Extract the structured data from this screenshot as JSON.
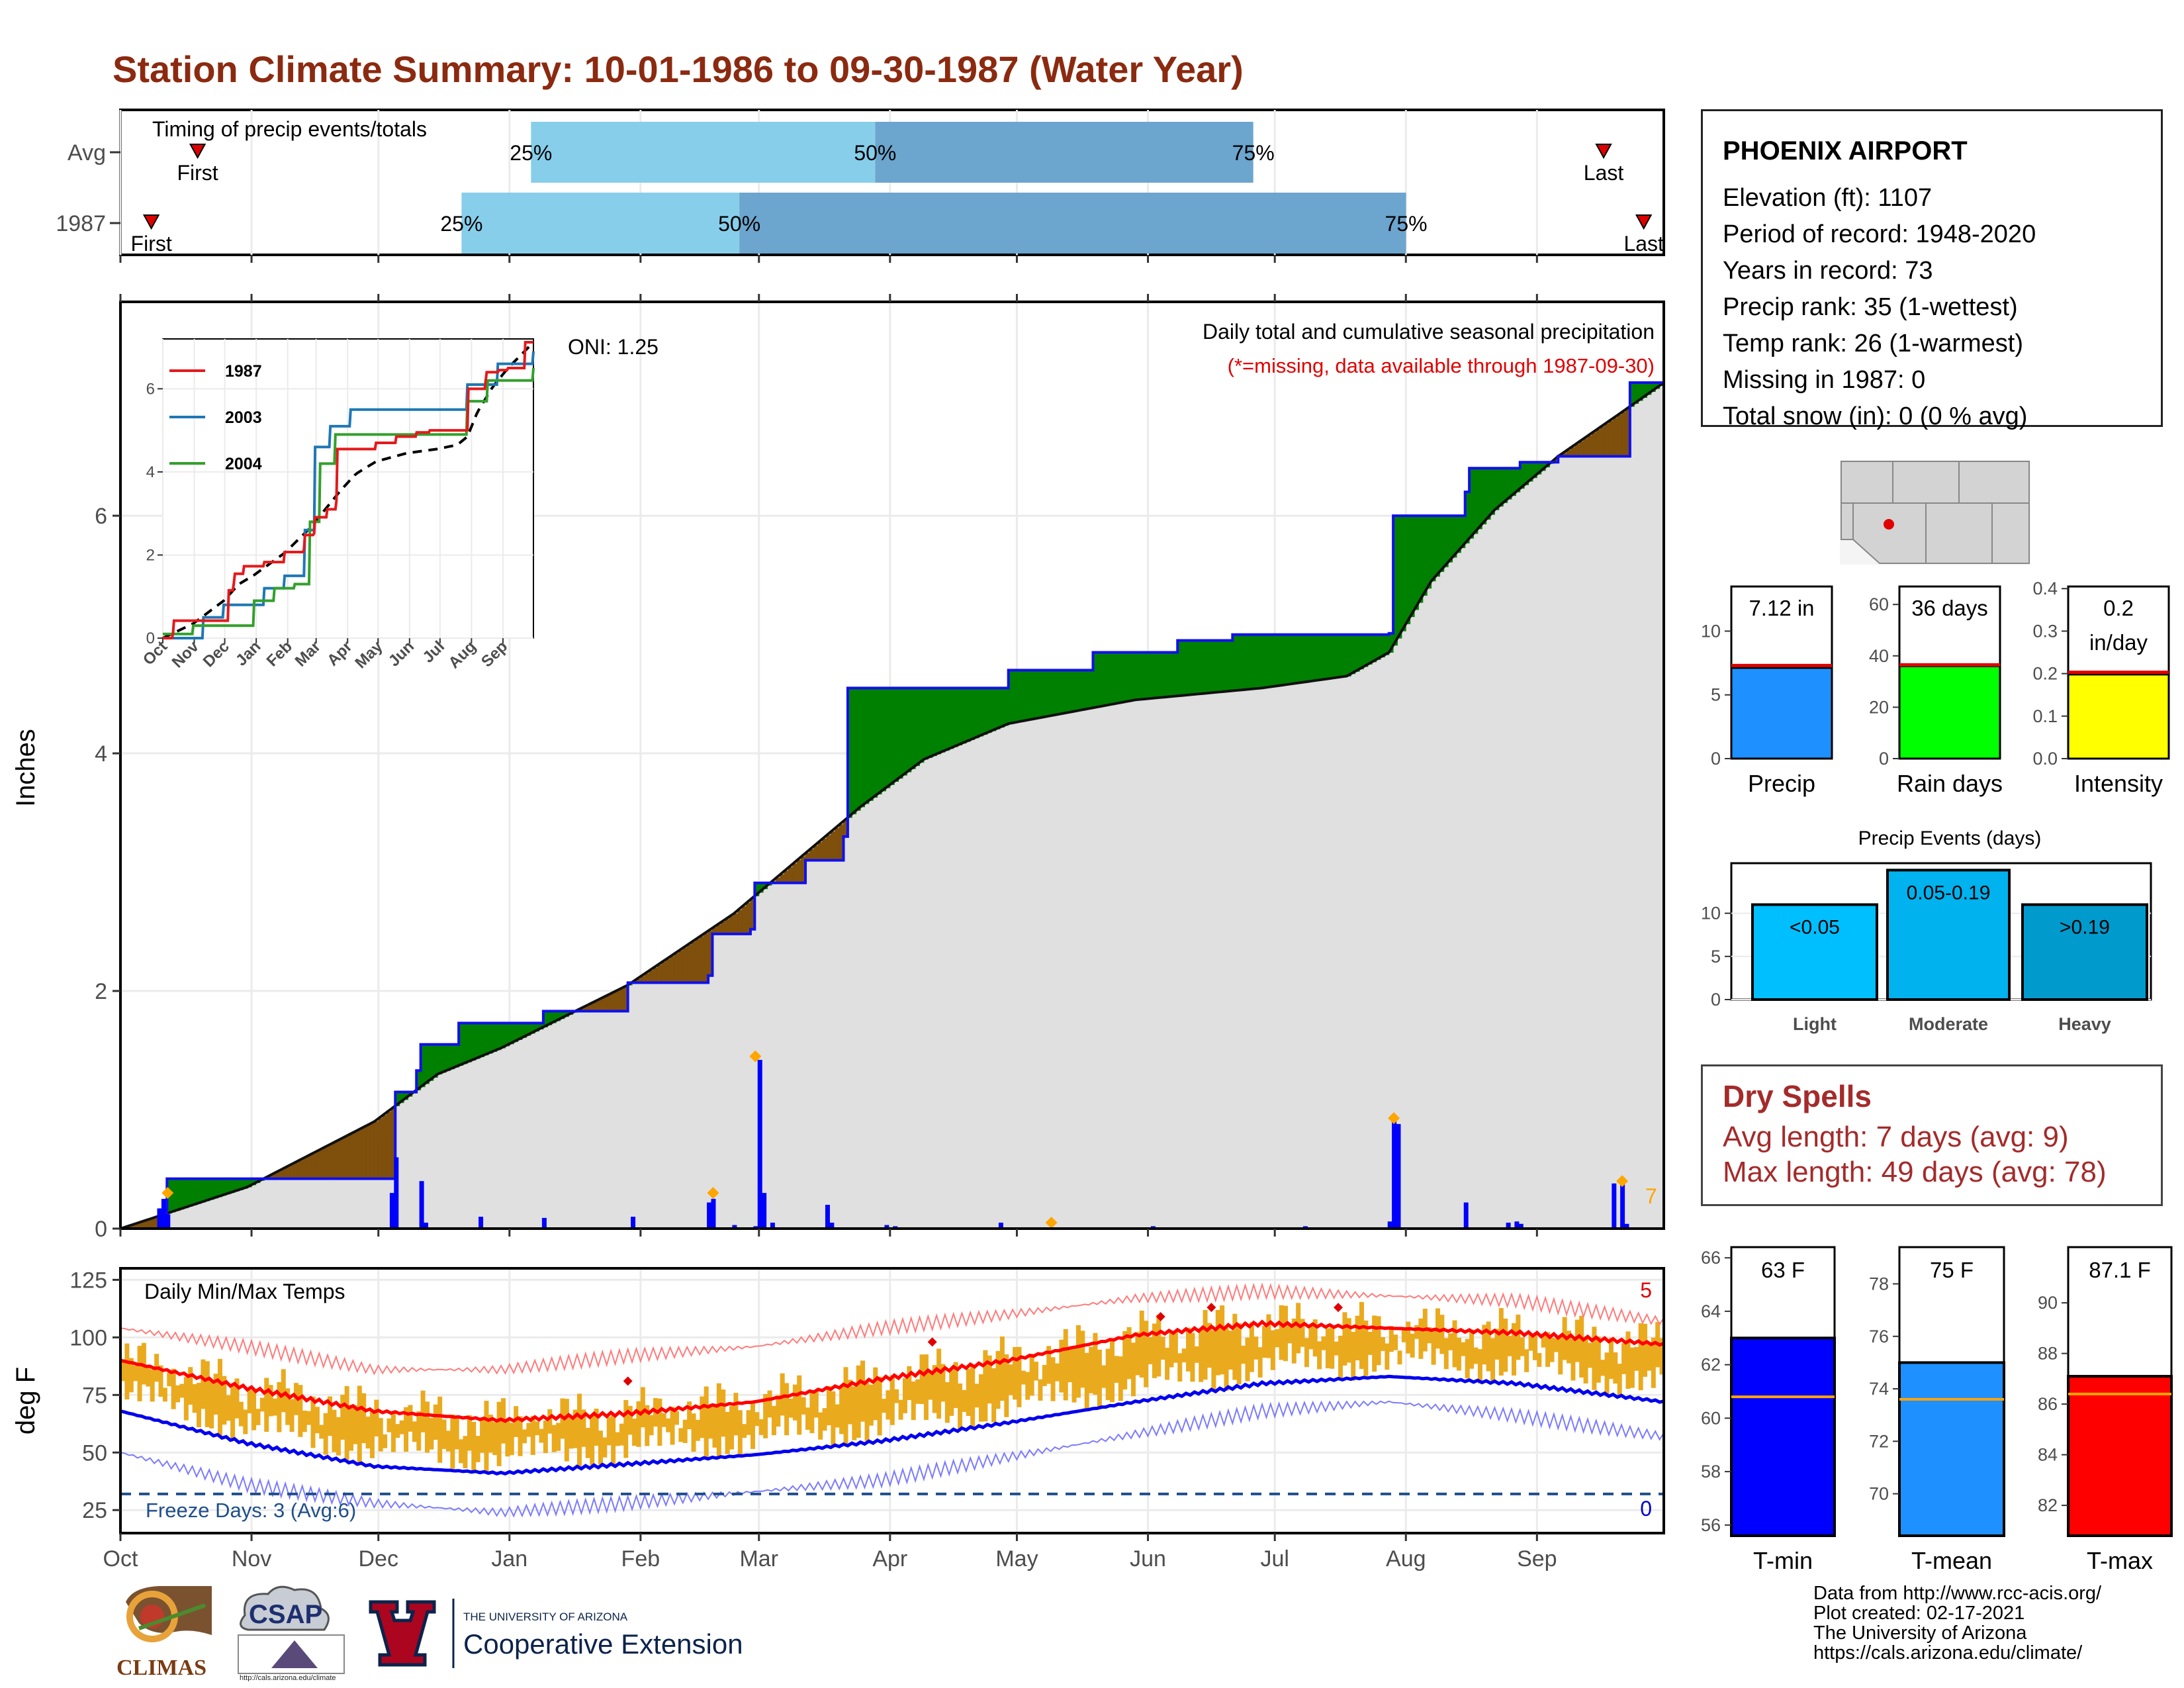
{
  "title": "Station Climate Summary: 10-01-1986 to 09-30-1987 (Water Year)",
  "colors": {
    "title": "#8b2a10",
    "green": "#008000",
    "brown": "#7f4f0c",
    "cum_line": "#1010ee",
    "avg_fill": "#e0e0e0",
    "q_light": "#87ceeb",
    "q_dark": "#6ca5cd",
    "tmax": "#ff0000",
    "tmin": "#0000ee",
    "temp_bar": "#eaaa1e",
    "freeze": "#1f4e8c",
    "dry": "#a42b2b"
  },
  "timing": {
    "label": "Timing of precip events/totals",
    "rows": [
      {
        "label": "Avg",
        "first": 0.05,
        "q25": 0.266,
        "q50": 0.489,
        "q75": 0.734,
        "last": 0.961
      },
      {
        "label": "1987",
        "first": 0.02,
        "q25": 0.221,
        "q50": 0.401,
        "q75": 0.833,
        "last": 0.987
      }
    ],
    "first_label": "First",
    "last_label": "Last",
    "q_labels": [
      "25%",
      "50%",
      "75%"
    ]
  },
  "main": {
    "ylabel": "Inches",
    "ylim": [
      0,
      7.8
    ],
    "yticks": [
      "0",
      "2",
      "4",
      "6"
    ],
    "title_right": "Daily total and cumulative seasonal precipitation",
    "missing_note": "(*=missing, data available through 1987-09-30)",
    "oni": "ONI: 1.25",
    "end_count": "7",
    "months": [
      "Oct",
      "Nov",
      "Dec",
      "Jan",
      "Feb",
      "Mar",
      "Apr",
      "May",
      "Jun",
      "Jul",
      "Aug",
      "Sep"
    ]
  },
  "inset": {
    "yticks": [
      "0",
      "2",
      "4",
      "6"
    ],
    "months": [
      "Oct",
      "Nov",
      "Dec",
      "Jan",
      "Feb",
      "Mar",
      "Apr",
      "May",
      "Jun",
      "Jul",
      "Aug",
      "Sep"
    ],
    "legend": [
      {
        "name": "1987",
        "color": "#e31a1c"
      },
      {
        "name": "2003",
        "color": "#1f78b4"
      },
      {
        "name": "2004",
        "color": "#33a02c"
      }
    ]
  },
  "temps": {
    "label": "Daily Min/Max Temps",
    "ylabel": "deg F",
    "yticks": [
      "25",
      "50",
      "75",
      "100",
      "125"
    ],
    "freeze_label": "Freeze Days: 3 (Avg:6)",
    "count_top": "5",
    "count_bottom": "0",
    "months": [
      "Oct",
      "Nov",
      "Dec",
      "Jan",
      "Feb",
      "Mar",
      "Apr",
      "May",
      "Jun",
      "Jul",
      "Aug",
      "Sep"
    ]
  },
  "station": {
    "name": "PHOENIX AIRPORT",
    "lines": [
      "Elevation (ft): 1107",
      "Period of record: 1948-2020",
      "Years in record: 73",
      "Precip rank: 35 (1-wettest)",
      "Temp rank: 26 (1-warmest)",
      "Missing in 1987: 0",
      "Total snow (in): 0 (0 % avg)"
    ]
  },
  "summary_bars": [
    {
      "label": "Precip",
      "value_text": "7.12 in",
      "value": 7.12,
      "avg": 7.3,
      "ymax": 13.5,
      "ticks": [
        "0",
        "5",
        "10"
      ],
      "tickvals": [
        0,
        5,
        10
      ],
      "color": "#1e90ff"
    },
    {
      "label": "Rain days",
      "value_text": "36 days",
      "value": 36,
      "avg": 36.5,
      "ymax": 67,
      "ticks": [
        "0",
        "20",
        "40",
        "60"
      ],
      "tickvals": [
        0,
        20,
        40,
        60
      ],
      "color": "#00ff00"
    },
    {
      "label": "Intensity",
      "value_text": "0.2\nin/day",
      "value": 0.198,
      "avg": 0.203,
      "ymax": 0.405,
      "ticks": [
        "0.0",
        "0.1",
        "0.2",
        "0.3",
        "0.4"
      ],
      "tickvals": [
        0,
        0.1,
        0.2,
        0.3,
        0.4
      ],
      "color": "#ffff00"
    }
  ],
  "events": {
    "title": "Precip Events (days)",
    "yticks": [
      "0",
      "5",
      "10"
    ],
    "bars": [
      {
        "label": "Light",
        "bar_text": "<0.05",
        "value": 11,
        "color": "#00bfff"
      },
      {
        "label": "Moderate",
        "bar_text": "0.05-0.19",
        "value": 15,
        "color": "#00b2ee"
      },
      {
        "label": "Heavy",
        "bar_text": ">0.19",
        "value": 11,
        "color": "#009acd"
      }
    ]
  },
  "dry_spells": {
    "title": "Dry Spells",
    "avg_length": "Avg length: 7 days (avg: 9)",
    "max_length": "Max length: 49 days (avg: 78)"
  },
  "temp_bars": [
    {
      "label": "T-min",
      "value_text": "63 F",
      "value": 63,
      "avg": 60.8,
      "ylim": [
        55.6,
        66.4
      ],
      "ticks": [
        "56",
        "58",
        "60",
        "62",
        "64",
        "66"
      ],
      "tickvals": [
        56,
        58,
        60,
        62,
        64,
        66
      ],
      "color": "#0000ff"
    },
    {
      "label": "T-mean",
      "value_text": "75 F",
      "value": 75,
      "avg": 73.6,
      "ylim": [
        68.4,
        79.4
      ],
      "ticks": [
        "70",
        "72",
        "74",
        "76",
        "78"
      ],
      "tickvals": [
        70,
        72,
        74,
        76,
        78
      ],
      "color": "#1e90ff"
    },
    {
      "label": "T-max",
      "value_text": "87.1 F",
      "value": 87.1,
      "avg": 86.4,
      "ylim": [
        80.8,
        92.2
      ],
      "ticks": [
        "82",
        "84",
        "86",
        "88",
        "90"
      ],
      "tickvals": [
        82,
        84,
        86,
        88,
        90
      ],
      "color": "#ff0000"
    }
  ],
  "logos": {
    "climas": "CLIMAS",
    "csap": "CSAP",
    "csap_url": "http://cals.arizona.edu/climate",
    "ua_small": "THE UNIVERSITY OF ARIZONA",
    "ua_big": "Cooperative Extension"
  },
  "credits": [
    "Data from http://www.rcc-acis.org/",
    "Plot created: 02-17-2021",
    "The University of Arizona",
    "https://cals.arizona.edu/climate/"
  ],
  "chart_data": [
    {
      "type": "bar",
      "title": "Timing of precip events/totals",
      "categories": [
        "Avg",
        "1987"
      ],
      "series": [
        {
          "name": "First",
          "values": [
            0.05,
            0.02
          ]
        },
        {
          "name": "25%",
          "values": [
            0.266,
            0.221
          ]
        },
        {
          "name": "50%",
          "values": [
            0.489,
            0.401
          ]
        },
        {
          "name": "75%",
          "values": [
            0.734,
            0.833
          ]
        },
        {
          "name": "Last",
          "values": [
            0.961,
            0.987
          ]
        }
      ]
    },
    {
      "type": "area",
      "title": "Daily total and cumulative seasonal precipitation",
      "ylabel": "Inches",
      "ylim": [
        0,
        7.8
      ],
      "x_months": [
        "Oct",
        "Nov",
        "Dec",
        "Jan",
        "Feb",
        "Mar",
        "Apr",
        "May",
        "Jun",
        "Jul",
        "Aug",
        "Sep"
      ],
      "series": [
        {
          "name": "1987",
          "days": [
            0,
            10,
            11,
            64,
            65,
            70,
            71,
            80,
            100,
            120,
            139,
            140,
            149,
            150,
            162,
            171,
            172,
            210,
            230,
            250,
            263,
            266,
            300,
            301,
            318,
            319,
            330,
            331,
            340,
            355,
            357,
            365
          ],
          "values": [
            0,
            0.1,
            0.42,
            0.42,
            1.15,
            1.33,
            1.55,
            1.73,
            1.83,
            2.07,
            2.13,
            2.48,
            2.52,
            2.91,
            3.1,
            3.3,
            4.55,
            4.7,
            4.85,
            4.95,
            5.0,
            5.0,
            5.01,
            6.0,
            6.2,
            6.4,
            6.4,
            6.45,
            6.5,
            6.5,
            7.12,
            7.12
          ]
        },
        {
          "name": "Average",
          "days": [
            0,
            30,
            60,
            75,
            90,
            120,
            145,
            160,
            175,
            190,
            210,
            240,
            270,
            290,
            300,
            310,
            325,
            340,
            355,
            365
          ],
          "values": [
            0,
            0.35,
            0.9,
            1.3,
            1.52,
            2.05,
            2.65,
            3.1,
            3.55,
            3.95,
            4.25,
            4.45,
            4.55,
            4.65,
            4.85,
            5.45,
            6.05,
            6.5,
            6.87,
            7.12
          ]
        }
      ],
      "daily_precip": {
        "days": [
          9,
          10,
          11,
          64,
          65,
          71,
          72,
          85,
          100,
          121,
          139,
          140,
          145,
          150,
          151,
          152,
          154,
          167,
          168,
          181,
          183,
          208,
          244,
          280,
          300,
          301,
          302,
          318,
          328,
          330,
          331,
          353,
          355,
          356
        ],
        "values": [
          0.17,
          0.25,
          0.12,
          0.3,
          0.6,
          0.4,
          0.05,
          0.1,
          0.09,
          0.1,
          0.22,
          0.25,
          0.03,
          0.02,
          1.42,
          0.3,
          0.05,
          0.2,
          0.05,
          0.03,
          0.02,
          0.05,
          0.02,
          0.02,
          0.06,
          0.9,
          0.88,
          0.22,
          0.05,
          0.06,
          0.04,
          0.38,
          0.41,
          0.04
        ]
      },
      "extremes_marked": [
        {
          "day": 11,
          "value": 0.3
        },
        {
          "day": 140,
          "value": 0.3
        },
        {
          "day": 150,
          "value": 1.45
        },
        {
          "day": 220,
          "value": 0.05
        },
        {
          "day": 301,
          "value": 0.93
        },
        {
          "day": 355,
          "value": 0.4
        }
      ]
    },
    {
      "type": "line",
      "title": "Daily Min/Max Temps",
      "ylabel": "deg F",
      "ylim": [
        15,
        130
      ],
      "series": [
        {
          "name": "Avg Tmax",
          "days": [
            0,
            30,
            60,
            90,
            120,
            150,
            180,
            210,
            240,
            270,
            300,
            330,
            365
          ],
          "values": [
            90,
            78,
            68,
            64,
            67,
            72,
            82,
            90,
            101,
            106,
            104,
            102,
            97
          ]
        },
        {
          "name": "Avg Tmin",
          "days": [
            0,
            30,
            60,
            90,
            120,
            150,
            180,
            210,
            240,
            270,
            300,
            330,
            365
          ],
          "values": [
            68,
            54,
            44,
            41,
            45,
            49,
            55,
            63,
            72,
            80,
            83,
            80,
            72
          ]
        },
        {
          "name": "Record high",
          "days": [
            0,
            30,
            60,
            90,
            120,
            150,
            180,
            210,
            240,
            270,
            300,
            330,
            365
          ],
          "values": [
            104,
            96,
            86,
            86,
            92,
            96,
            104,
            110,
            117,
            120,
            118,
            116,
            107
          ]
        },
        {
          "name": "Record low",
          "days": [
            0,
            30,
            60,
            90,
            120,
            150,
            180,
            210,
            240,
            270,
            300,
            330,
            365
          ],
          "values": [
            50,
            36,
            28,
            24,
            28,
            33,
            38,
            48,
            58,
            68,
            72,
            66,
            57
          ]
        }
      ],
      "freeze_line": 32
    }
  ]
}
